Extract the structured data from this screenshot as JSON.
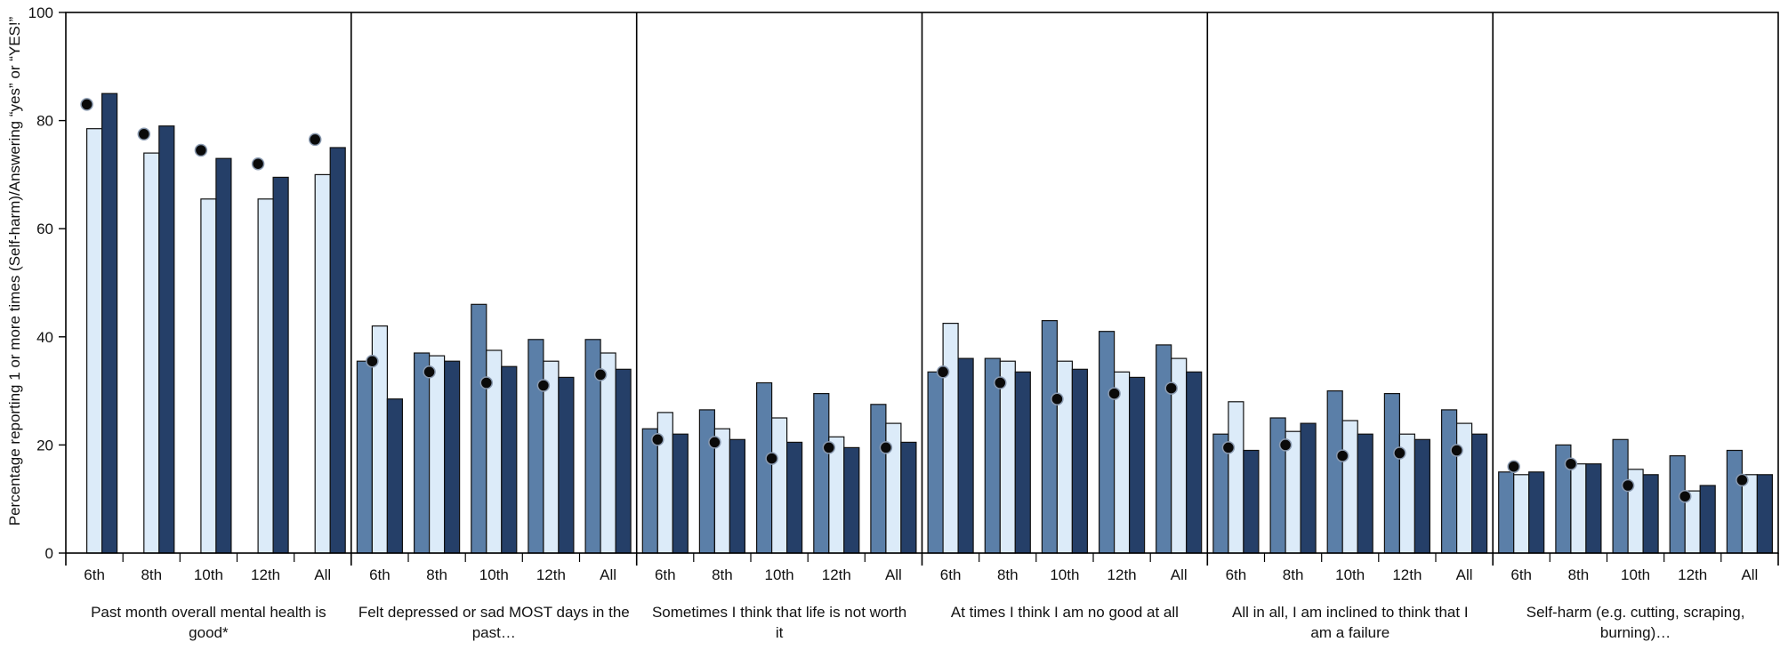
{
  "chart_data": {
    "type": "bar",
    "ylabel": "Percentage reporting 1 or more times (Self-harm)/Answering “yes” or “YES!”",
    "ylim": [
      0,
      100
    ],
    "yticks": [
      0,
      20,
      40,
      60,
      80,
      100
    ],
    "grid": false,
    "legend": "none",
    "colors": {
      "series_a": "#5b7fa8",
      "series_b": "#dcebf9",
      "series_c": "#253f68",
      "marker": "#0a0a0a",
      "marker_ring": "#8a9ab0",
      "axis": "#000000"
    },
    "subcategories": [
      "6th",
      "8th",
      "10th",
      "12th",
      "All"
    ],
    "groups": [
      {
        "label": "Past month overall mental health is good*",
        "label_lines": [
          "Past month overall mental health is",
          "good*"
        ],
        "series_a": [
          null,
          null,
          null,
          null,
          null
        ],
        "series_b": [
          78.5,
          74,
          65.5,
          65.5,
          70
        ],
        "series_c": [
          85,
          79,
          73,
          69.5,
          75
        ],
        "markers": [
          83,
          77.5,
          74.5,
          72,
          76.5
        ]
      },
      {
        "label": "Felt depressed or sad MOST days in the past…",
        "label_lines": [
          "Felt depressed or sad MOST days in the",
          "past…"
        ],
        "series_a": [
          35.5,
          37,
          46,
          39.5,
          39.5
        ],
        "series_b": [
          42,
          36.5,
          37.5,
          35.5,
          37
        ],
        "series_c": [
          28.5,
          35.5,
          34.5,
          32.5,
          34
        ],
        "markers": [
          35.5,
          33.5,
          31.5,
          31,
          33
        ]
      },
      {
        "label": "Sometimes I think that life is not worth it",
        "label_lines": [
          "Sometimes I think that life is not worth",
          "it"
        ],
        "series_a": [
          23,
          26.5,
          31.5,
          29.5,
          27.5
        ],
        "series_b": [
          26,
          23,
          25,
          21.5,
          24
        ],
        "series_c": [
          22,
          21,
          20.5,
          19.5,
          20.5
        ],
        "markers": [
          21,
          20.5,
          17.5,
          19.5,
          19.5
        ]
      },
      {
        "label": "At times I think I am no good at all",
        "label_lines": [
          "At times I think I am no good at all"
        ],
        "series_a": [
          33.5,
          36,
          43,
          41,
          38.5
        ],
        "series_b": [
          42.5,
          35.5,
          35.5,
          33.5,
          36
        ],
        "series_c": [
          36,
          33.5,
          34,
          32.5,
          33.5
        ],
        "markers": [
          33.5,
          31.5,
          28.5,
          29.5,
          30.5
        ]
      },
      {
        "label": "All in all, I am inclined to think that I am a failure",
        "label_lines": [
          "All in all, I am inclined to think that I",
          "am a failure"
        ],
        "series_a": [
          22,
          25,
          30,
          29.5,
          26.5
        ],
        "series_b": [
          28,
          22.5,
          24.5,
          22,
          24
        ],
        "series_c": [
          19,
          24,
          22,
          21,
          22
        ],
        "markers": [
          19.5,
          20,
          18,
          18.5,
          19
        ]
      },
      {
        "label": "Self-harm (e.g. cutting, scraping, burning)…",
        "label_lines": [
          "Self-harm (e.g. cutting, scraping,",
          "burning)…"
        ],
        "series_a": [
          15,
          20,
          21,
          18,
          19
        ],
        "series_b": [
          14.5,
          16.5,
          15.5,
          11.5,
          14.5
        ],
        "series_c": [
          15,
          16.5,
          14.5,
          12.5,
          14.5
        ],
        "markers": [
          16,
          16.5,
          12.5,
          10.5,
          13.5
        ]
      }
    ]
  }
}
